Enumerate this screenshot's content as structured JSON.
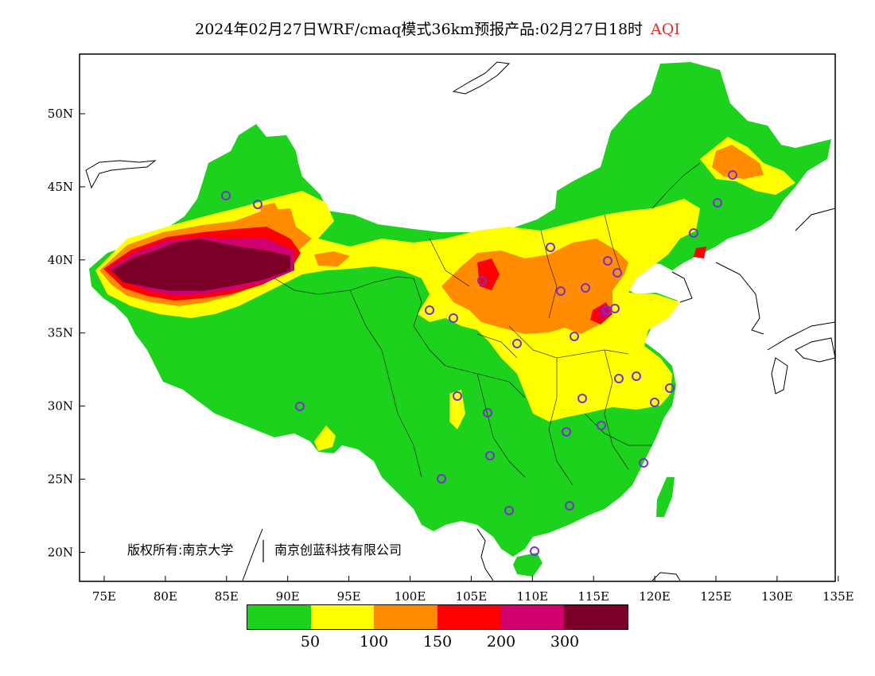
{
  "title": {
    "main": "2024年02月27日WRF/cmaq模式36km预报产品:02月27日18时",
    "variable": "AQI",
    "variable_color": "#e0302a"
  },
  "axes": {
    "x_ticks": [
      "75E",
      "80E",
      "85E",
      "90E",
      "95E",
      "100E",
      "105E",
      "110E",
      "115E",
      "120E",
      "125E",
      "130E",
      "135E"
    ],
    "y_ticks": [
      "50N",
      "45N",
      "40N",
      "35N",
      "30N",
      "25N",
      "20N"
    ]
  },
  "copyright": {
    "left": "版权所有:南京大学",
    "right": "南京创蓝科技有限公司"
  },
  "legend": {
    "colors": [
      "#1dd21d",
      "#ffff00",
      "#ff8c00",
      "#ff0000",
      "#d0006e",
      "#7a0028"
    ],
    "labels": [
      "50",
      "100",
      "150",
      "200",
      "300"
    ]
  },
  "map_layers": {
    "land_color": "#1dd21d",
    "colors": {
      "yellow": "#ffff00",
      "orange": "#ff8c00",
      "red": "#ff0000",
      "magenta": "#d0006e",
      "maroon": "#7a0028",
      "station": "#7a2fd0"
    }
  }
}
